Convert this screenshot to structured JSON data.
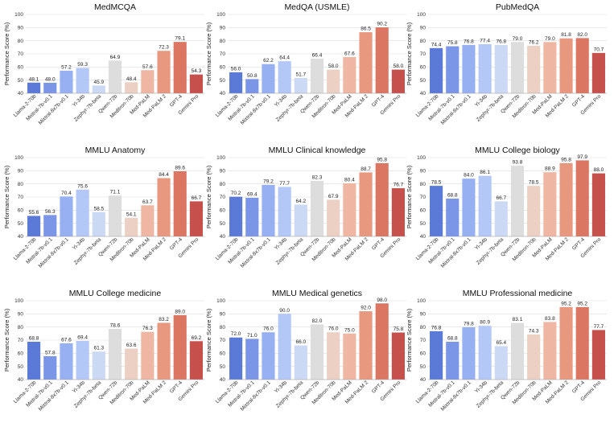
{
  "figure": {
    "ylabel": "Performance Score (%)",
    "models": [
      "Llama-2-70b",
      "Mistral-7b-v0.1",
      "Mixtral-8x7b-v0.1",
      "Yi-34b",
      "Zephyr-7b-beta",
      "Qwen-72b",
      "Meditron-70b",
      "Med-PaLM",
      "Med-PaLM 2",
      "GPT-4",
      "Gemini Pro"
    ],
    "colors": [
      "#5b7ad8",
      "#7b96e6",
      "#97b0f2",
      "#b3c8f7",
      "#ccd9f4",
      "#dddddd",
      "#ecd0c4",
      "#efb7a3",
      "#e99880",
      "#db7663",
      "#c6504c"
    ]
  },
  "chart_data": [
    {
      "type": "bar",
      "title": "MedMCQA",
      "ylim": [
        40,
        100
      ],
      "yticks": [
        40,
        50,
        60,
        70,
        80,
        90,
        100
      ],
      "categories": [
        "Llama-2-70b",
        "Mistral-7b-v0.1",
        "Mixtral-8x7b-v0.1",
        "Yi-34b",
        "Zephyr-7b-beta",
        "Qwen-72b",
        "Meditron-70b",
        "Med-PaLM",
        "Med-PaLM 2",
        "GPT-4",
        "Gemini Pro"
      ],
      "values": [
        48.1,
        48.0,
        57.2,
        59.3,
        45.9,
        64.9,
        48.4,
        57.6,
        72.3,
        79.1,
        54.3
      ],
      "labels": [
        "48.1",
        "48.0",
        "57.2",
        "59.3",
        "45.9",
        "64.9",
        "48.4",
        "57.6",
        "72.3",
        "79.1",
        "54.3"
      ]
    },
    {
      "type": "bar",
      "title": "MedQA (USMLE)",
      "ylim": [
        40,
        100
      ],
      "yticks": [
        40,
        50,
        60,
        70,
        80,
        90,
        100
      ],
      "categories": [
        "Llama-2-70b",
        "Mistral-7b-v0.1",
        "Mixtral-8x7b-v0.1",
        "Yi-34b",
        "Zephyr-7b-beta",
        "Qwen-72b",
        "Meditron-70b",
        "Med-PaLM",
        "Med-PaLM 2",
        "GPT-4",
        "Gemini Pro"
      ],
      "values": [
        56.0,
        50.8,
        62.2,
        64.4,
        51.7,
        66.4,
        58.0,
        67.6,
        86.5,
        90.2,
        58.0
      ],
      "labels": [
        "56.0",
        "50.8",
        "62.2",
        "64.4",
        "51.7",
        "66.4",
        "58.0",
        "67.6",
        "86.5",
        "90.2",
        "58.0"
      ]
    },
    {
      "type": "bar",
      "title": "PubMedQA",
      "ylim": [
        40,
        100
      ],
      "yticks": [
        40,
        50,
        60,
        70,
        80,
        90,
        100
      ],
      "categories": [
        "Llama-2-70b",
        "Mistral-7b-v0.1",
        "Mixtral-8x7b-v0.1",
        "Yi-34b",
        "Zephyr-7b-beta",
        "Qwen-72b",
        "Meditron-70b",
        "Med-PaLM",
        "Med-PaLM 2",
        "GPT-4",
        "Gemini Pro"
      ],
      "values": [
        74.4,
        75.8,
        76.8,
        77.4,
        76.8,
        79.0,
        76.2,
        79.0,
        81.8,
        82.0,
        70.7
      ],
      "labels": [
        "74.4",
        "75.8",
        "76.8",
        "77.4",
        "76.8",
        "79.0",
        "76.2",
        "79.0",
        "81.8",
        "82.0",
        "70.7"
      ]
    },
    {
      "type": "bar",
      "title": "MMLU Anatomy",
      "ylim": [
        40,
        100
      ],
      "yticks": [
        40,
        50,
        60,
        70,
        80,
        90,
        100
      ],
      "categories": [
        "Llama-2-70b",
        "Mistral-7b-v0.1",
        "Mixtral-8x7b-v0.1",
        "Yi-34b",
        "Zephyr-7b-beta",
        "Qwen-72b",
        "Meditron-70b",
        "Med-PaLM",
        "Med-PaLM 2",
        "GPT-4",
        "Gemini Pro"
      ],
      "values": [
        55.6,
        56.3,
        70.4,
        75.6,
        58.5,
        71.1,
        54.1,
        63.7,
        84.4,
        89.6,
        66.7
      ],
      "labels": [
        "55.6",
        "56.3",
        "70.4",
        "75.6",
        "58.5",
        "71.1",
        "54.1",
        "63.7",
        "84.4",
        "89.6",
        "66.7"
      ]
    },
    {
      "type": "bar",
      "title": "MMLU Clinical knowledge",
      "ylim": [
        40,
        100
      ],
      "yticks": [
        40,
        50,
        60,
        70,
        80,
        90,
        100
      ],
      "categories": [
        "Llama-2-70b",
        "Mistral-7b-v0.1",
        "Mixtral-8x7b-v0.1",
        "Yi-34b",
        "Zephyr-7b-beta",
        "Qwen-72b",
        "Meditron-70b",
        "Med-PaLM",
        "Med-PaLM 2",
        "GPT-4",
        "Gemini Pro"
      ],
      "values": [
        70.2,
        69.4,
        79.2,
        77.7,
        64.2,
        82.3,
        67.9,
        80.4,
        88.7,
        95.8,
        76.7
      ],
      "labels": [
        "70.2",
        "69.4",
        "79.2",
        "77.7",
        "64.2",
        "82.3",
        "67.9",
        "80.4",
        "88.7",
        "95.8",
        "76.7"
      ]
    },
    {
      "type": "bar",
      "title": "MMLU College biology",
      "ylim": [
        40,
        100
      ],
      "yticks": [
        40,
        50,
        60,
        70,
        80,
        90,
        100
      ],
      "categories": [
        "Llama-2-70b",
        "Mistral-7b-v0.1",
        "Mixtral-8x7b-v0.1",
        "Yi-34b",
        "Zephyr-7b-beta",
        "Qwen-72b",
        "Meditron-70b",
        "Med-PaLM",
        "Med-PaLM 2",
        "GPT-4",
        "Gemini Pro"
      ],
      "values": [
        78.5,
        68.8,
        84.0,
        86.1,
        66.7,
        93.8,
        78.5,
        88.9,
        95.8,
        97.9,
        88.0
      ],
      "labels": [
        "78.5",
        "68.8",
        "84.0",
        "86.1",
        "66.7",
        "93.8",
        "78.5",
        "88.9",
        "95.8",
        "97.9",
        "88.0"
      ]
    },
    {
      "type": "bar",
      "title": "MMLU College medicine",
      "ylim": [
        40,
        100
      ],
      "yticks": [
        40,
        50,
        60,
        70,
        80,
        90,
        100
      ],
      "categories": [
        "Llama-2-70b",
        "Mistral-7b-v0.1",
        "Mixtral-8x7b-v0.1",
        "Yi-34b",
        "Zephyr-7b-beta",
        "Qwen-72b",
        "Meditron-70b",
        "Med-PaLM",
        "Med-PaLM 2",
        "GPT-4",
        "Gemini Pro"
      ],
      "values": [
        68.8,
        57.8,
        67.6,
        69.4,
        61.3,
        78.6,
        63.6,
        76.3,
        83.2,
        89.0,
        69.2
      ],
      "labels": [
        "68.8",
        "57.8",
        "67.6",
        "69.4",
        "61.3",
        "78.6",
        "63.6",
        "76.3",
        "83.2",
        "89.0",
        "69.2"
      ]
    },
    {
      "type": "bar",
      "title": "MMLU Medical genetics",
      "ylim": [
        40,
        100
      ],
      "yticks": [
        40,
        50,
        60,
        70,
        80,
        90,
        100
      ],
      "categories": [
        "Llama-2-70b",
        "Mistral-7b-v0.1",
        "Mixtral-8x7b-v0.1",
        "Yi-34b",
        "Zephyr-7b-beta",
        "Qwen-72b",
        "Meditron-70b",
        "Med-PaLM",
        "Med-PaLM 2",
        "GPT-4",
        "Gemini Pro"
      ],
      "values": [
        72.0,
        71.0,
        76.0,
        90.0,
        66.0,
        82.0,
        76.0,
        75.0,
        92.0,
        98.0,
        75.8
      ],
      "labels": [
        "72.0",
        "71.0",
        "76.0",
        "90.0",
        "66.0",
        "82.0",
        "76.0",
        "75.0",
        "92.0",
        "98.0",
        "75.8"
      ]
    },
    {
      "type": "bar",
      "title": "MMLU Professional medicine",
      "ylim": [
        40,
        100
      ],
      "yticks": [
        40,
        50,
        60,
        70,
        80,
        90,
        100
      ],
      "categories": [
        "Llama-2-70b",
        "Mistral-7b-v0.1",
        "Mixtral-8x7b-v0.1",
        "Yi-34b",
        "Zephyr-7b-beta",
        "Qwen-72b",
        "Meditron-70b",
        "Med-PaLM",
        "Med-PaLM 2",
        "GPT-4",
        "Gemini Pro"
      ],
      "values": [
        76.8,
        68.8,
        79.8,
        80.9,
        65.4,
        83.1,
        74.3,
        83.8,
        95.2,
        95.2,
        77.7
      ],
      "labels": [
        "76.8",
        "68.8",
        "79.8",
        "80.9",
        "65.4",
        "83.1",
        "74.3",
        "83.8",
        "95.2",
        "95.2",
        "77.7"
      ]
    }
  ]
}
